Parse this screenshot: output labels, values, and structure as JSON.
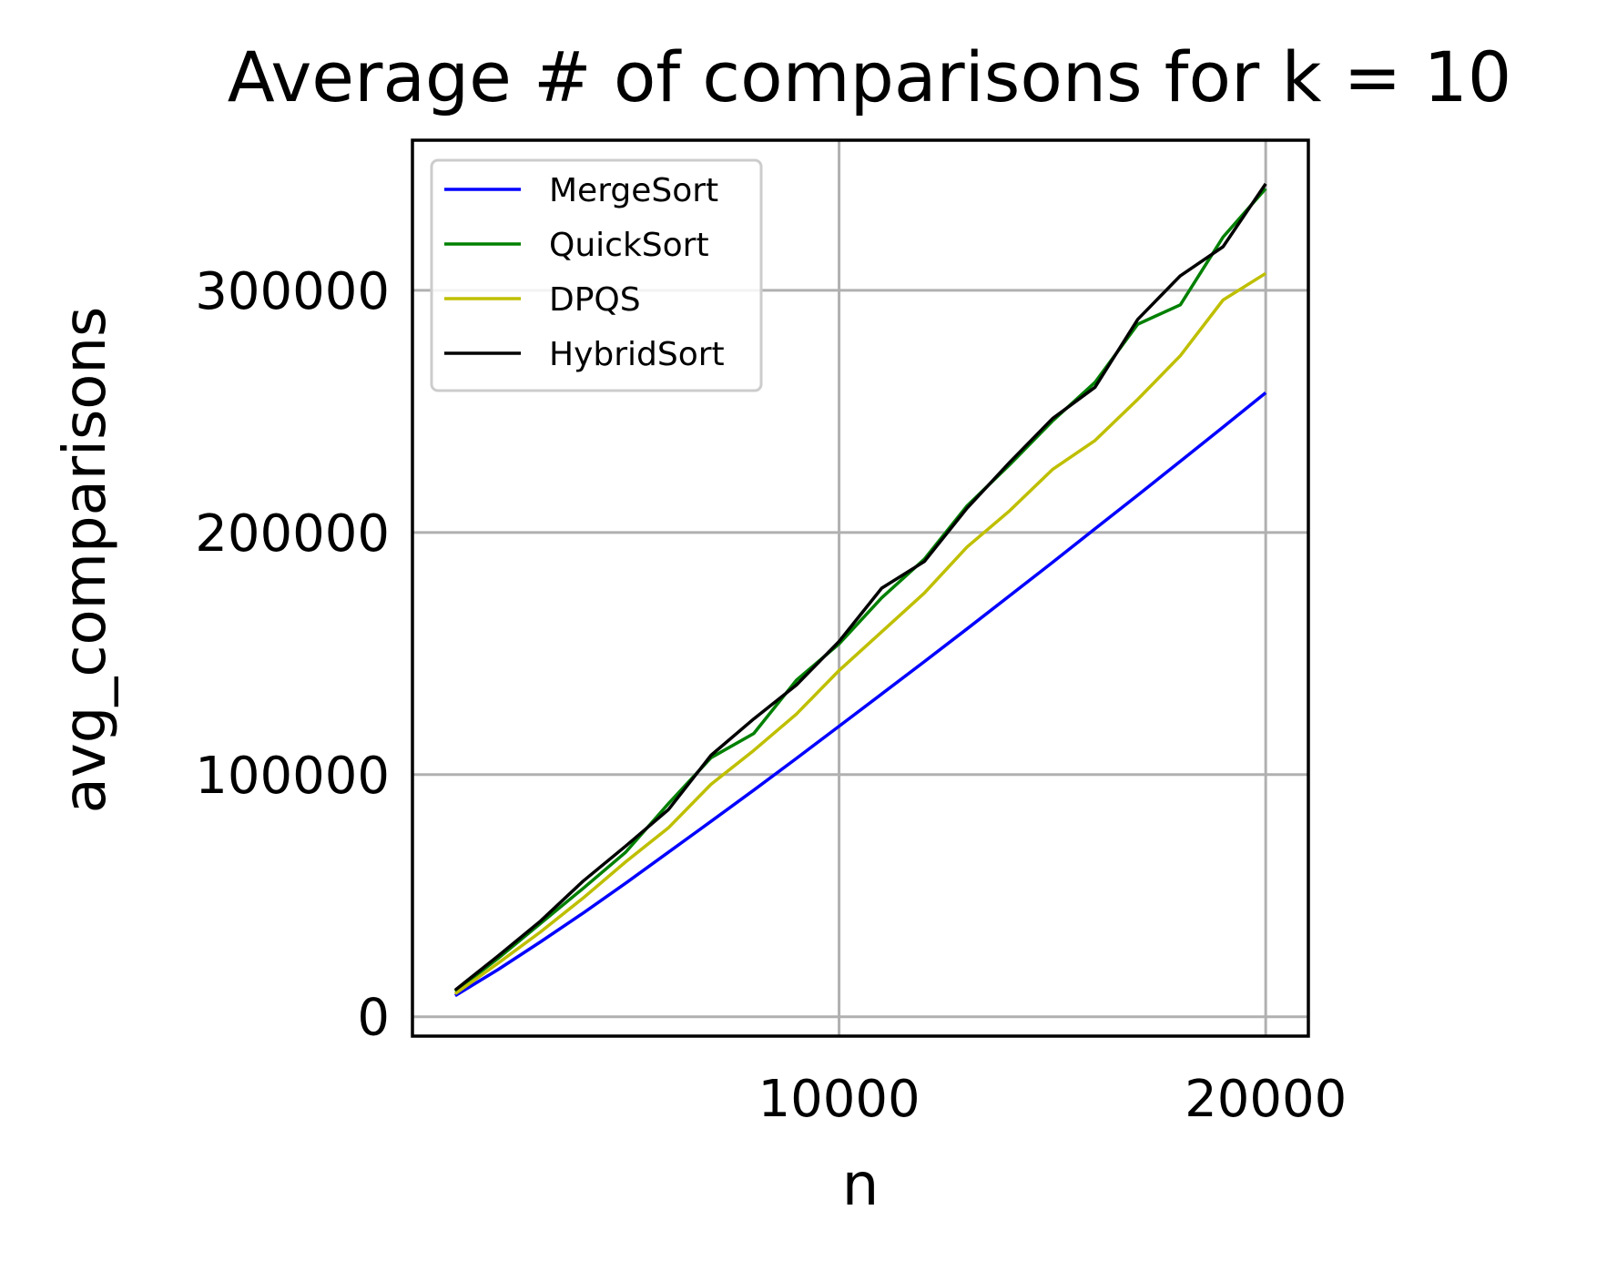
{
  "chart_data": {
    "type": "line",
    "title": "Average # of comparisons for k = 10",
    "xlabel": "n",
    "ylabel": "avg_comparisons",
    "xlim": [
      0,
      21000
    ],
    "ylim": [
      -8000,
      362000
    ],
    "xticks": [
      10000,
      20000
    ],
    "xtick_labels": [
      "10000",
      "20000"
    ],
    "yticks": [
      0,
      100000,
      200000,
      300000
    ],
    "ytick_labels": [
      "0",
      "100000",
      "200000",
      "300000"
    ],
    "grid": true,
    "legend_position": "upper-left",
    "x": [
      1000,
      2000,
      3000,
      4000,
      5000,
      6000,
      7000,
      8000,
      9000,
      10000,
      11000,
      12000,
      13000,
      14000,
      15000,
      16000,
      17000,
      18000,
      19000,
      20000
    ],
    "series": [
      {
        "name": "MergeSort",
        "color": "#0000ff",
        "values": [
          8700,
          19400,
          30900,
          42800,
          55200,
          67900,
          80700,
          93600,
          106700,
          120000,
          133300,
          146700,
          160200,
          173900,
          187600,
          201500,
          215400,
          229400,
          243500,
          257700
        ]
      },
      {
        "name": "QuickSort",
        "color": "#008000",
        "values": [
          10500,
          24000,
          38500,
          53000,
          68000,
          88000,
          107000,
          117000,
          139000,
          154000,
          173000,
          189000,
          211000,
          228000,
          246000,
          262000,
          286000,
          294000,
          322000,
          342000
        ]
      },
      {
        "name": "DPQS",
        "color": "#bfbf00",
        "values": [
          9500,
          22000,
          35000,
          49000,
          64000,
          78000,
          96000,
          110000,
          125000,
          143000,
          159000,
          175000,
          194000,
          209000,
          226000,
          238000,
          255000,
          273000,
          296000,
          307000
        ]
      },
      {
        "name": "HybridSort",
        "color": "#000000",
        "values": [
          11000,
          25000,
          39500,
          56000,
          70500,
          85500,
          108000,
          123000,
          137000,
          155000,
          177000,
          188000,
          210000,
          229000,
          247000,
          260000,
          288000,
          306000,
          318000,
          344000
        ]
      }
    ]
  }
}
